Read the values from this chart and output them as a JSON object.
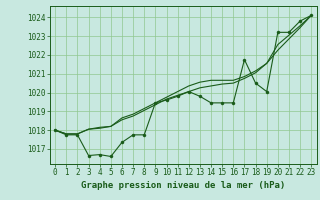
{
  "title": "Graphe pression niveau de la mer (hPa)",
  "background_color": "#c8e8e0",
  "grid_color": "#90c890",
  "line_color": "#1a5c1a",
  "xlim": [
    -0.5,
    23.5
  ],
  "ylim": [
    1016.2,
    1024.6
  ],
  "yticks": [
    1017,
    1018,
    1019,
    1020,
    1021,
    1022,
    1023,
    1024
  ],
  "xticks": [
    0,
    1,
    2,
    3,
    4,
    5,
    6,
    7,
    8,
    9,
    10,
    11,
    12,
    13,
    14,
    15,
    16,
    17,
    18,
    19,
    20,
    21,
    22,
    23
  ],
  "series1": [
    1018.0,
    1017.75,
    1017.75,
    1016.65,
    1016.7,
    1016.6,
    1017.35,
    1017.75,
    1017.75,
    1019.45,
    1019.6,
    1019.8,
    1020.05,
    1019.8,
    1019.45,
    1019.45,
    1019.45,
    1021.75,
    1020.5,
    1020.05,
    1023.2,
    1023.2,
    1023.8,
    1024.1
  ],
  "series2": [
    1018.0,
    1017.8,
    1017.8,
    1018.05,
    1018.1,
    1018.2,
    1018.55,
    1018.75,
    1019.05,
    1019.35,
    1019.65,
    1019.85,
    1020.05,
    1020.25,
    1020.35,
    1020.45,
    1020.5,
    1020.75,
    1021.05,
    1021.55,
    1022.25,
    1022.85,
    1023.45,
    1024.1
  ],
  "series3": [
    1018.0,
    1017.8,
    1017.8,
    1018.05,
    1018.15,
    1018.2,
    1018.65,
    1018.85,
    1019.15,
    1019.45,
    1019.75,
    1020.05,
    1020.35,
    1020.55,
    1020.65,
    1020.65,
    1020.65,
    1020.85,
    1021.15,
    1021.55,
    1022.55,
    1023.05,
    1023.55,
    1024.1
  ],
  "title_fontsize": 6.5,
  "tick_fontsize": 5.5
}
